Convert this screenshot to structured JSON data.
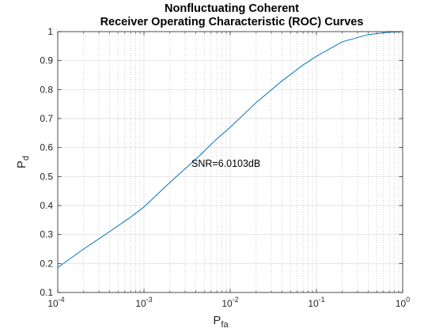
{
  "chart_data": {
    "type": "line",
    "title_lines": [
      "Nonfluctuating Coherent",
      "Receiver Operating Characteristic (ROC) Curves"
    ],
    "xlabel": {
      "main": "P",
      "sub": "fa"
    },
    "ylabel": {
      "main": "P",
      "sub": "d"
    },
    "x_scale": "log",
    "xlim": [
      0.0001,
      1
    ],
    "ylim": [
      0.1,
      1
    ],
    "x_ticks": [
      {
        "value": 0.0001,
        "base": "10",
        "exp": "-4"
      },
      {
        "value": 0.001,
        "base": "10",
        "exp": "-3"
      },
      {
        "value": 0.01,
        "base": "10",
        "exp": "-2"
      },
      {
        "value": 0.1,
        "base": "10",
        "exp": "-1"
      },
      {
        "value": 1,
        "base": "10",
        "exp": "0"
      }
    ],
    "y_ticks": [
      "0.1",
      "0.2",
      "0.3",
      "0.4",
      "0.5",
      "0.6",
      "0.7",
      "0.8",
      "0.9",
      "1"
    ],
    "grid": true,
    "minor_grid_x": true,
    "annotation": {
      "text": "SNR=6.0103dB",
      "x": 0.0035,
      "y": 0.545
    },
    "series": [
      {
        "color": "#0072bd",
        "x": [
          0.0001,
          0.0002,
          0.0004,
          0.0007,
          0.001,
          0.002,
          0.004,
          0.007,
          0.01,
          0.02,
          0.04,
          0.07,
          0.1,
          0.2,
          0.4,
          0.7,
          1
        ],
        "y": [
          0.186,
          0.25,
          0.31,
          0.36,
          0.395,
          0.48,
          0.56,
          0.63,
          0.67,
          0.755,
          0.83,
          0.885,
          0.915,
          0.965,
          0.99,
          0.998,
          1
        ]
      }
    ]
  }
}
